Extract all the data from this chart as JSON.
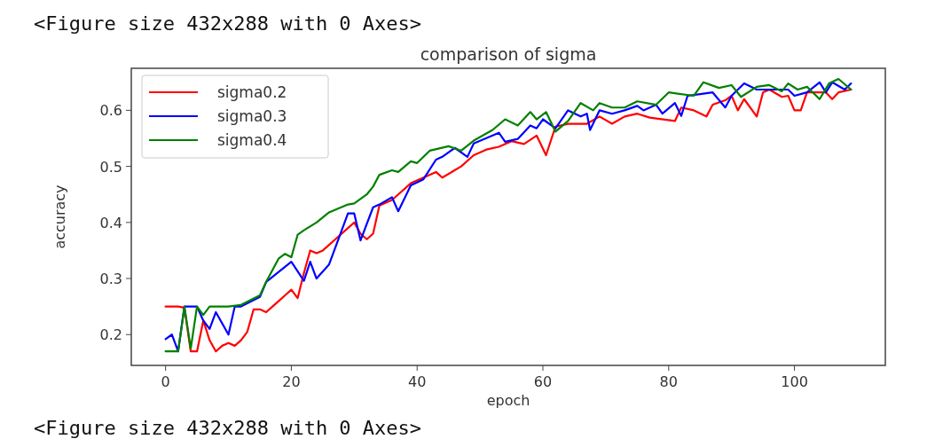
{
  "chart_data": {
    "type": "line",
    "title": "comparison of sigma",
    "xlabel": "epoch",
    "ylabel": "accuracy",
    "annotations": [
      "<Figure size 432x288 with 0 Axes>",
      "<Figure size 432x288 with 0 Axes>"
    ],
    "xlim": [
      -5.45,
      114.45
    ],
    "ylim": [
      0.145,
      0.675
    ],
    "xticks": [
      0,
      20,
      40,
      60,
      80,
      100
    ],
    "yticks": [
      0.2,
      0.3,
      0.4,
      0.5,
      0.6
    ],
    "grid": false,
    "legend": "top left",
    "marker": "none",
    "line_style": "solid",
    "series": [
      {
        "name": "sigma0.2",
        "color": "#ff0000",
        "x": [
          0,
          1,
          2,
          3,
          4,
          5,
          6,
          7,
          8,
          9,
          10,
          11,
          12,
          13,
          14,
          15,
          16,
          17,
          18,
          19,
          20,
          21,
          22,
          23,
          24,
          25,
          26,
          27,
          28,
          29,
          30,
          31,
          32,
          33,
          34,
          36,
          37,
          39,
          41,
          43,
          44,
          47,
          49,
          51,
          53,
          55,
          57,
          59,
          60.5,
          62,
          64,
          67,
          69,
          71,
          73,
          75,
          77,
          81,
          82,
          84,
          86,
          87,
          89,
          90,
          91,
          92,
          94,
          95,
          96,
          98,
          99,
          100,
          101,
          102,
          105,
          106,
          107,
          109
        ],
        "values": [
          0.25,
          0.25,
          0.25,
          0.248,
          0.17,
          0.17,
          0.225,
          0.19,
          0.17,
          0.18,
          0.185,
          0.18,
          0.19,
          0.205,
          0.245,
          0.245,
          0.24,
          0.25,
          0.26,
          0.27,
          0.28,
          0.265,
          0.31,
          0.35,
          0.345,
          0.35,
          0.36,
          0.37,
          0.38,
          0.39,
          0.4,
          0.38,
          0.37,
          0.38,
          0.43,
          0.44,
          0.45,
          0.47,
          0.48,
          0.49,
          0.48,
          0.5,
          0.52,
          0.53,
          0.535,
          0.545,
          0.54,
          0.555,
          0.52,
          0.571,
          0.576,
          0.576,
          0.589,
          0.576,
          0.589,
          0.594,
          0.587,
          0.581,
          0.605,
          0.6,
          0.589,
          0.61,
          0.618,
          0.626,
          0.6,
          0.62,
          0.589,
          0.632,
          0.637,
          0.624,
          0.626,
          0.6,
          0.6,
          0.632,
          0.632,
          0.62,
          0.632,
          0.637
        ]
      },
      {
        "name": "sigma0.3",
        "color": "#0000ff",
        "x": [
          0,
          1,
          2,
          3,
          5,
          6,
          7,
          8,
          10,
          11,
          12,
          15,
          16,
          20,
          22,
          23,
          24,
          26,
          29,
          30,
          31,
          33,
          34,
          36,
          37,
          39,
          41,
          43,
          44,
          46,
          48,
          49,
          53,
          54,
          56,
          58,
          59,
          60,
          62,
          64,
          66,
          67,
          67.5,
          69,
          71,
          73,
          75,
          76,
          78,
          79,
          81,
          82,
          83,
          85,
          87,
          89,
          90,
          92,
          94,
          96,
          99,
          100,
          102,
          104,
          105,
          106,
          108,
          109
        ],
        "values": [
          0.192,
          0.2,
          0.17,
          0.25,
          0.25,
          0.225,
          0.21,
          0.24,
          0.2,
          0.25,
          0.25,
          0.267,
          0.294,
          0.33,
          0.296,
          0.33,
          0.3,
          0.325,
          0.416,
          0.416,
          0.368,
          0.427,
          0.432,
          0.445,
          0.42,
          0.466,
          0.477,
          0.512,
          0.517,
          0.533,
          0.517,
          0.541,
          0.56,
          0.544,
          0.549,
          0.573,
          0.568,
          0.584,
          0.568,
          0.6,
          0.589,
          0.594,
          0.565,
          0.6,
          0.594,
          0.6,
          0.608,
          0.6,
          0.61,
          0.594,
          0.613,
          0.59,
          0.626,
          0.629,
          0.632,
          0.605,
          0.626,
          0.648,
          0.637,
          0.637,
          0.637,
          0.626,
          0.632,
          0.65,
          0.632,
          0.65,
          0.637,
          0.648
        ]
      },
      {
        "name": "sigma0.4",
        "color": "#008000",
        "x": [
          0,
          2,
          3,
          4,
          5,
          6,
          7,
          10,
          12,
          15,
          16,
          18,
          19,
          20,
          21,
          22,
          24,
          26,
          29,
          30,
          32,
          33,
          34,
          36,
          37,
          39,
          40,
          42,
          45,
          47,
          49,
          52,
          54,
          56,
          58,
          59,
          60.5,
          62,
          64,
          66,
          68,
          69,
          71,
          73,
          75,
          78,
          80,
          84,
          85.5,
          88,
          90,
          91.5,
          94,
          96,
          98,
          99,
          100.5,
          102,
          104,
          105.5,
          107,
          109
        ],
        "values": [
          0.17,
          0.17,
          0.25,
          0.175,
          0.25,
          0.235,
          0.25,
          0.25,
          0.253,
          0.27,
          0.294,
          0.336,
          0.344,
          0.338,
          0.378,
          0.386,
          0.4,
          0.418,
          0.432,
          0.434,
          0.45,
          0.464,
          0.485,
          0.493,
          0.49,
          0.509,
          0.506,
          0.528,
          0.536,
          0.528,
          0.546,
          0.565,
          0.584,
          0.573,
          0.597,
          0.584,
          0.597,
          0.562,
          0.581,
          0.613,
          0.6,
          0.613,
          0.605,
          0.605,
          0.616,
          0.61,
          0.632,
          0.626,
          0.65,
          0.64,
          0.645,
          0.624,
          0.642,
          0.645,
          0.634,
          0.648,
          0.637,
          0.642,
          0.62,
          0.648,
          0.656,
          0.637
        ]
      }
    ]
  }
}
